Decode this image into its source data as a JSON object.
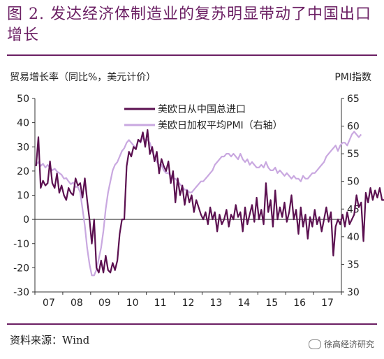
{
  "title": "图 2. 发达经济体制造业的复苏明显带动了中国出口增长",
  "source": "资料来源：Wind",
  "watermark": "徐高经济研究",
  "chart_data": {
    "type": "line",
    "ylabel": "贸易增长率（同比%，美元计价）",
    "y2label": "PMI指数",
    "x_tick_labels": [
      "07",
      "08",
      "09",
      "10",
      "11",
      "12",
      "13",
      "14",
      "15",
      "16",
      "17"
    ],
    "ylim": [
      -30,
      50
    ],
    "y_ticks": [
      -30,
      -20,
      -10,
      0,
      10,
      20,
      30,
      40,
      50
    ],
    "y2lim": [
      30,
      65
    ],
    "y2_ticks": [
      30,
      35,
      40,
      45,
      50,
      55,
      60,
      65
    ],
    "grid": false,
    "legend_position": "top-center",
    "series": [
      {
        "name": "美欧日从中国总进口",
        "axis": "left",
        "color": "#5b1050",
        "start": "2007-01",
        "values": [
          22,
          34,
          13,
          16,
          14,
          15,
          24,
          15,
          13,
          19,
          11,
          14,
          10,
          8,
          13,
          11,
          10,
          17,
          14,
          15,
          9,
          17,
          8,
          0,
          -10,
          0,
          -20,
          -22,
          -17,
          -22,
          -15,
          -21,
          -22,
          -18,
          -21,
          -17,
          -6,
          0,
          0,
          22,
          28,
          26,
          30,
          29,
          33,
          32,
          36,
          30,
          37,
          27,
          30,
          24,
          28,
          19,
          25,
          22,
          20,
          24,
          15,
          20,
          7,
          17,
          10,
          14,
          6,
          12,
          7,
          10,
          3,
          8,
          5,
          2,
          0,
          3,
          -2,
          5,
          0,
          3,
          -5,
          2,
          -2,
          0,
          4,
          -3,
          2,
          0,
          6,
          1,
          3,
          -5,
          5,
          -2,
          2,
          6,
          -1,
          9,
          0,
          4,
          -2,
          15,
          3,
          8,
          -3,
          12,
          0,
          5,
          1,
          7,
          -1,
          3,
          10,
          0,
          4,
          -6,
          5,
          -3,
          2,
          -8,
          1,
          -3,
          4,
          -2,
          1,
          -5,
          0,
          5,
          -1,
          3,
          -15,
          -3,
          0,
          -2,
          2,
          -3,
          3,
          -2,
          0,
          2,
          10,
          5,
          7,
          -9,
          11,
          7,
          13,
          8,
          12,
          9,
          13,
          8,
          8,
          10,
          14
        ]
      },
      {
        "name": "美欧日加权平均PMI（右轴）",
        "axis": "right",
        "color": "#c9a8e0",
        "start": "2007-01",
        "values": [
          53,
          53.5,
          52.8,
          53.2,
          52.5,
          53,
          52.5,
          52,
          52.3,
          51.8,
          51.5,
          51.2,
          50.5,
          50.6,
          50,
          49.5,
          49.8,
          49,
          49,
          48,
          45,
          42,
          38,
          35,
          33,
          33,
          34,
          36,
          38,
          41,
          45,
          48,
          50,
          52,
          53,
          53.5,
          54.5,
          55.5,
          56,
          57,
          57.5,
          57,
          56.5,
          56,
          57.5,
          57,
          58,
          57.5,
          57.5,
          57,
          55.5,
          54.5,
          53.5,
          53,
          53,
          52,
          51.5,
          51.5,
          51,
          50.5,
          50.5,
          50,
          49.5,
          49,
          48.5,
          48.5,
          48,
          48,
          48.5,
          49,
          49.5,
          50,
          50,
          50.5,
          51,
          51.5,
          52,
          53,
          53.5,
          54,
          54.5,
          54.5,
          55,
          55,
          54.5,
          55,
          54.5,
          54,
          55,
          54,
          53.5,
          54,
          53,
          53.5,
          53,
          52.5,
          52.5,
          53,
          52.5,
          53.5,
          52.5,
          52,
          52,
          52.5,
          51.5,
          52,
          51.5,
          51,
          51.5,
          51,
          50.5,
          51,
          50.5,
          50.5,
          50,
          51,
          50.5,
          50.5,
          51,
          51.5,
          51.5,
          52,
          52.5,
          53,
          53.5,
          54.5,
          55,
          55.5,
          56,
          56.5,
          55.5,
          56.5,
          57,
          57,
          56.5,
          57.5,
          58.5,
          59,
          58.5,
          58,
          58.5
        ]
      }
    ]
  }
}
